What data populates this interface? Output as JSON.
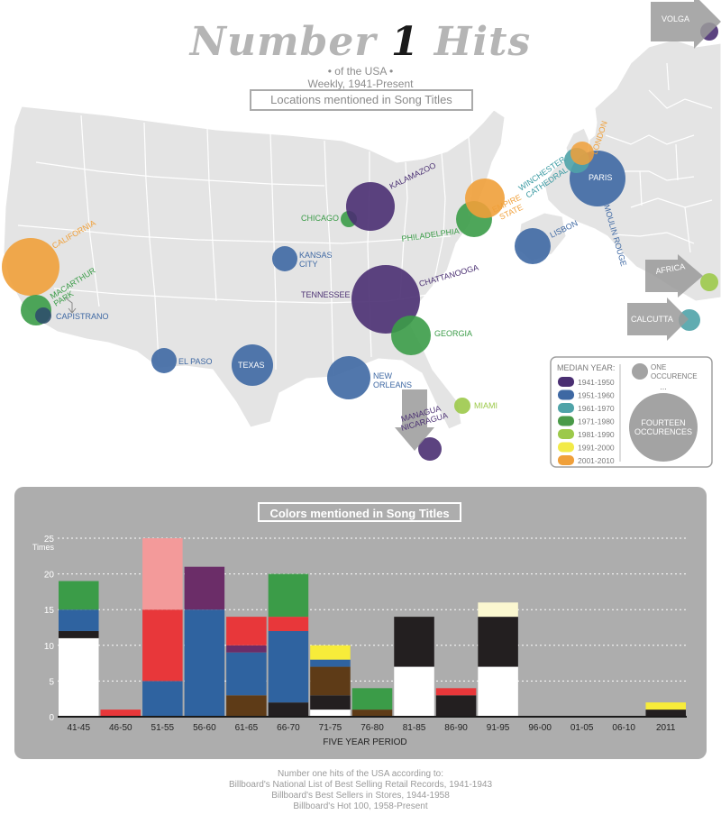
{
  "header": {
    "title_part1": "Number",
    "title_number": "1",
    "title_part2": "Hits",
    "subtitle1": "• of the USA •",
    "subtitle2": "Weekly, 1941-Present"
  },
  "map_section": {
    "title": "Locations mentioned in Song Titles"
  },
  "map_labels": {
    "volga": "VOLGA",
    "london": "LONDON",
    "winchester1": "WINCHESTER",
    "winchester2": "CATHEDRAL",
    "paris": "PARIS",
    "moulin_rouge": "MOULIN ROUGE",
    "empire1": "EMPIRE",
    "empire2": "STATE",
    "lisbon": "LISBON",
    "kalamazoo": "KALAMAZOO",
    "chicago": "CHICAGO",
    "philadelphia": "PHILADELPHIA",
    "california": "CALIFORNIA",
    "kansas1": "KANSAS",
    "kansas2": "CITY",
    "tennessee": "TENNESSEE",
    "chattanooga": "CHATTANOOGA",
    "macarthur1": "MACARTHUR",
    "macarthur2": "PARK",
    "capistrano": "CAPISTRANO",
    "georgia": "GEORGIA",
    "el_paso": "EL PASO",
    "texas": "TEXAS",
    "new_orleans1": "NEW",
    "new_orleans2": "ORLEANS",
    "miami": "MIAMI",
    "managua1": "MANAGUA",
    "managua2": "NICARAGUA",
    "africa": "AFRICA",
    "calcutta": "CALCUTTA"
  },
  "legend": {
    "median_title": "MEDIAN YEAR:",
    "items": [
      {
        "label": "1941-1950",
        "color": "#4a2f72"
      },
      {
        "label": "1951-1960",
        "color": "#3e68a3"
      },
      {
        "label": "1961-1970",
        "color": "#4fa3a8"
      },
      {
        "label": "1971-1980",
        "color": "#4a9a48"
      },
      {
        "label": "1981-1990",
        "color": "#9cc94a"
      },
      {
        "label": "1991-2000",
        "color": "#f2ea48"
      },
      {
        "label": "2001-2010",
        "color": "#f0a03a"
      }
    ],
    "one1": "ONE",
    "one2": "OCCURENCE",
    "dots": "...",
    "fourteen1": "FOURTEEN",
    "fourteen2": "OCCURENCES"
  },
  "chart_data": {
    "type": "bar",
    "stacked": true,
    "title": "Colors mentioned in Song Titles",
    "xlabel": "FIVE YEAR PERIOD",
    "ylabel": "Times",
    "ylim": [
      0,
      25
    ],
    "yticks": [
      0,
      5,
      10,
      15,
      20,
      25
    ],
    "categories": [
      "41-45",
      "46-50",
      "51-55",
      "56-60",
      "61-65",
      "66-70",
      "71-75",
      "76-80",
      "81-85",
      "86-90",
      "91-95",
      "96-00",
      "01-05",
      "06-10",
      "2011"
    ],
    "series": [
      {
        "name": "White",
        "color": "#ffffff",
        "values": [
          11,
          0,
          0,
          0,
          0,
          0,
          1,
          0,
          7,
          0,
          7,
          0,
          0,
          0,
          0
        ]
      },
      {
        "name": "Black",
        "color": "#231f20",
        "values": [
          1,
          0,
          0,
          0,
          0,
          2,
          2,
          0,
          7,
          3,
          7,
          0,
          0,
          0,
          1
        ]
      },
      {
        "name": "Brown",
        "color": "#5e3b17",
        "values": [
          0,
          0,
          0,
          0,
          3,
          0,
          4,
          1,
          0,
          0,
          0,
          0,
          0,
          0,
          0
        ]
      },
      {
        "name": "Blue",
        "color": "#2f63a0",
        "values": [
          3,
          0,
          5,
          15,
          6,
          10,
          1,
          0,
          0,
          0,
          0,
          0,
          0,
          0,
          0
        ]
      },
      {
        "name": "Purple",
        "color": "#6b2d68",
        "values": [
          0,
          0,
          0,
          6,
          1,
          0,
          0,
          0,
          0,
          0,
          0,
          0,
          0,
          0,
          0
        ]
      },
      {
        "name": "Red",
        "color": "#e8373a",
        "values": [
          0,
          1,
          10,
          0,
          4,
          2,
          0,
          0,
          0,
          1,
          0,
          0,
          0,
          0,
          0
        ]
      },
      {
        "name": "Pink",
        "color": "#f39a9a",
        "values": [
          0,
          0,
          10,
          0,
          0,
          0,
          0,
          0,
          0,
          0,
          0,
          0,
          0,
          0,
          0
        ]
      },
      {
        "name": "Green",
        "color": "#3b9c48",
        "values": [
          4,
          0,
          0,
          0,
          0,
          6,
          0,
          3,
          0,
          0,
          0,
          0,
          0,
          0,
          0
        ]
      },
      {
        "name": "Cream",
        "color": "#fbf7d0",
        "values": [
          0,
          0,
          0,
          0,
          0,
          0,
          0,
          0,
          0,
          0,
          2,
          0,
          0,
          0,
          0
        ]
      },
      {
        "name": "Yellow",
        "color": "#f7ec3a",
        "values": [
          0,
          0,
          0,
          0,
          0,
          0,
          2,
          0,
          0,
          0,
          0,
          0,
          0,
          0,
          1
        ]
      }
    ]
  },
  "footer": {
    "line1": "Number one hits of the USA according to:",
    "line2": "Billboard's National List of Best Selling Retail Records, 1941-1943",
    "line3": "Billboard's Best Sellers in Stores, 1944-1958",
    "line4": "Billboard's Hot 100, 1958-Present"
  }
}
